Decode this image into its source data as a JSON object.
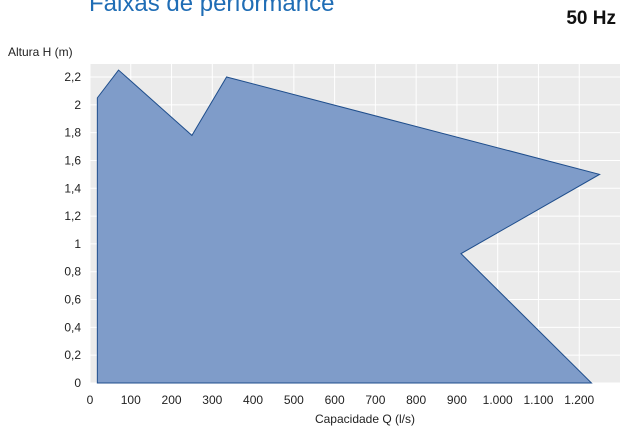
{
  "header": {
    "title": "Faixas de performance",
    "frequency": "50 Hz"
  },
  "chart_data": {
    "type": "area",
    "title": "Faixas de performance",
    "xlabel": "Capacidade Q (l/s)",
    "ylabel": "Altura H (m)",
    "xlim": [
      0,
      1300
    ],
    "ylim": [
      0,
      2.2
    ],
    "xticks": [
      0,
      100,
      200,
      300,
      400,
      500,
      600,
      700,
      800,
      900,
      1000,
      1100,
      1200
    ],
    "xtick_labels": [
      "0",
      "100",
      "200",
      "300",
      "400",
      "500",
      "600",
      "700",
      "800",
      "900",
      "1.000",
      "1.100",
      "1.200"
    ],
    "yticks": [
      0,
      0.2,
      0.4,
      0.6,
      0.8,
      1,
      1.2,
      1.4,
      1.6,
      1.8,
      2,
      2.2
    ],
    "ytick_labels": [
      "0",
      "0,2",
      "0,4",
      "0,6",
      "0,8",
      "1",
      "1,2",
      "1,4",
      "1,6",
      "1,8",
      "2",
      "2,2"
    ],
    "grid": true,
    "legend": "none",
    "colors": {
      "fill": "#7f9cc9",
      "stroke": "#1f4e8c",
      "plot_bg": "#ebebeb",
      "grid": "#ffffff"
    },
    "polygon": {
      "x": [
        18,
        18,
        70,
        250,
        335,
        1250,
        910,
        1230
      ],
      "y": [
        0,
        2.05,
        2.25,
        1.78,
        2.2,
        1.5,
        0.93,
        0
      ]
    }
  }
}
